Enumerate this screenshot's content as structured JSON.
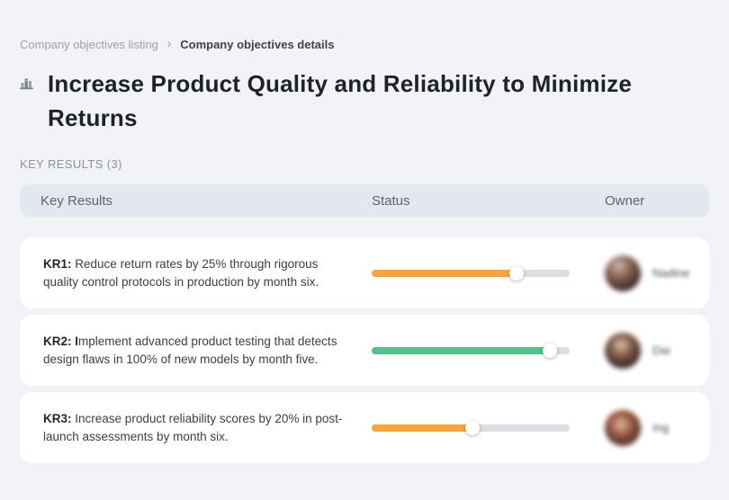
{
  "breadcrumb": {
    "separator": "›",
    "items": [
      {
        "label": "Company objectives listing"
      },
      {
        "label": "Company objectives details"
      }
    ]
  },
  "objective": {
    "title_line1": "Increase Product Quality and Reliability to Minimize",
    "title_line2": "Returns",
    "icon": "bar-chart-buildings-icon"
  },
  "key_results_section_label": "KEY RESULTS (3)",
  "table": {
    "headers": {
      "key_results": "Key Results",
      "status": "Status",
      "owner": "Owner"
    },
    "rows": [
      {
        "label": "KR1:",
        "text": "Reduce return rates by 25% through rigorous quality control protocols in production by month six.",
        "progress_percent": 73,
        "progress_color": "#fba436",
        "owner": {
          "name": "Nadine"
        }
      },
      {
        "label": "KR2: I",
        "text": "mplement advanced product testing that detects design flaws in 100% of new models by month five.",
        "progress_percent": 90,
        "progress_color": "#53c28b",
        "owner": {
          "name": "Dai"
        }
      },
      {
        "label": "KR3:",
        "text": "Increase product reliability scores by 20% in post-launch assessments by month six.",
        "progress_percent": 51,
        "progress_color": "#fba436",
        "owner": {
          "name": "Ing"
        }
      }
    ]
  },
  "colors": {
    "page_background": "#f1f3f6",
    "header_background": "#e3e8f0",
    "card_background": "#ffffff",
    "track_background": "#dbdee2",
    "orange": "#fba436",
    "green": "#53c28b"
  }
}
